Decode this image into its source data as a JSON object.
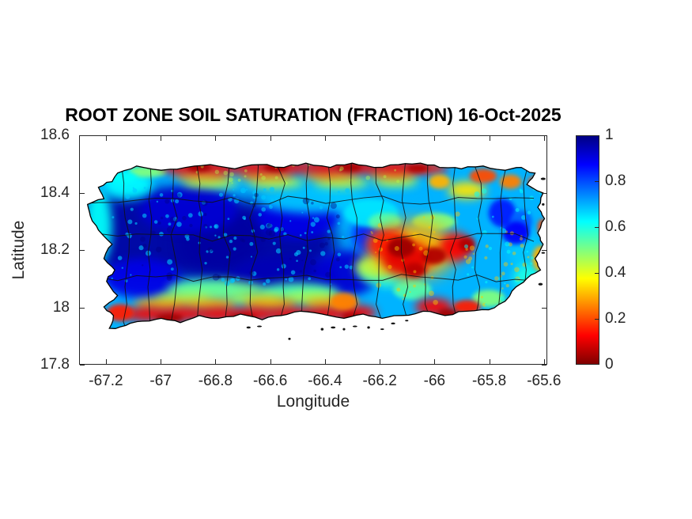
{
  "figure": {
    "background": "#ffffff",
    "axes_color": "#262626",
    "title_color": "#000000"
  },
  "chart_data": {
    "type": "heatmap",
    "title": "ROOT ZONE SOIL SATURATION (FRACTION) 16-Oct-2025",
    "xlabel": "Longitude",
    "ylabel": "Latitude",
    "region": "Puerto Rico",
    "grid": false,
    "xlim": [
      -67.298,
      -65.588
    ],
    "ylim": [
      17.8,
      18.6
    ],
    "xticks": [
      -67.2,
      -67,
      -66.8,
      -66.6,
      -66.4,
      -66.2,
      -66,
      -65.8,
      -65.6
    ],
    "xtick_labels": [
      "-67.2",
      "-67",
      "-66.8",
      "-66.6",
      "-66.4",
      "-66.2",
      "-66",
      "-65.8",
      "-65.6"
    ],
    "yticks": [
      18.6,
      18.4,
      18.2,
      18,
      17.8
    ],
    "ytick_labels": [
      "18.6",
      "18.4",
      "18.2",
      "18",
      "17.8"
    ],
    "colorbar": {
      "min": 0,
      "max": 1,
      "tick_values": [
        1,
        0.8,
        0.6,
        0.4,
        0.2,
        0
      ],
      "tick_labels": [
        "1",
        "0.8",
        "0.6",
        "0.4",
        "0.2",
        "0"
      ],
      "colormap": "jet-reversed",
      "gradient_stops": [
        {
          "color": "#7f0000",
          "value": 0
        },
        {
          "color": "#ff0000",
          "value": 0.125
        },
        {
          "color": "#ffff00",
          "value": 0.375
        },
        {
          "color": "#00ffff",
          "value": 0.625
        },
        {
          "color": "#0000ff",
          "value": 0.875
        },
        {
          "color": "#000084",
          "value": 1
        }
      ]
    },
    "base_value": 0.7,
    "saturation_regions": [
      [
        -67.0,
        18.25,
        0.38,
        0.16,
        0.97,
        "L"
      ],
      [
        -66.65,
        18.22,
        0.3,
        0.15,
        0.97,
        "L"
      ],
      [
        -66.9,
        18.34,
        0.18,
        0.08,
        0.92,
        "M"
      ],
      [
        -66.5,
        18.32,
        0.15,
        0.08,
        0.9,
        "M"
      ],
      [
        -66.55,
        18.1,
        0.2,
        0.08,
        0.95,
        "M"
      ],
      [
        -67.07,
        18.1,
        0.14,
        0.07,
        0.9,
        "M"
      ],
      [
        -66.32,
        18.12,
        0.12,
        0.08,
        0.92,
        "M"
      ],
      [
        -66.2,
        18.25,
        0.1,
        0.08,
        0.85,
        "M"
      ],
      [
        -67.23,
        18.28,
        0.05,
        0.13,
        0.62,
        "M"
      ],
      [
        -67.12,
        18.43,
        0.09,
        0.05,
        0.63,
        "M"
      ],
      [
        -66.45,
        18.38,
        0.2,
        0.05,
        0.68,
        "M"
      ],
      [
        -66.15,
        18.35,
        0.12,
        0.06,
        0.7,
        "M"
      ],
      [
        -66.8,
        18.06,
        0.18,
        0.035,
        0.52,
        "M"
      ],
      [
        -66.5,
        18.05,
        0.15,
        0.035,
        0.55,
        "M"
      ],
      [
        -66.17,
        18.12,
        0.1,
        0.05,
        0.6,
        "M"
      ],
      [
        -66.23,
        18.33,
        0.1,
        0.05,
        0.65,
        "S"
      ],
      [
        -65.67,
        18.2,
        0.06,
        0.07,
        0.68,
        "M"
      ],
      [
        -65.66,
        18.1,
        0.05,
        0.05,
        0.6,
        "M"
      ],
      [
        -66.08,
        18.06,
        0.07,
        0.035,
        0.55,
        "S"
      ],
      [
        -65.8,
        18.03,
        0.06,
        0.03,
        0.5,
        "S"
      ],
      [
        -66.82,
        18.437,
        0.1,
        0.018,
        0.43,
        "M"
      ],
      [
        -66.58,
        18.437,
        0.1,
        0.018,
        0.43,
        "M"
      ],
      [
        -66.34,
        18.437,
        0.1,
        0.018,
        0.43,
        "M"
      ],
      [
        -66.14,
        18.44,
        0.08,
        0.018,
        0.45,
        "M"
      ],
      [
        -66.92,
        18.03,
        0.1,
        0.018,
        0.45,
        "M"
      ],
      [
        -66.65,
        18.03,
        0.1,
        0.018,
        0.45,
        "M"
      ],
      [
        -66.45,
        18.035,
        0.1,
        0.018,
        0.45,
        "M"
      ],
      [
        -66.22,
        18.14,
        0.07,
        0.04,
        0.45,
        "M"
      ],
      [
        -66.0,
        18.3,
        0.08,
        0.03,
        0.5,
        "S"
      ],
      [
        -66.18,
        18.3,
        0.06,
        0.03,
        0.55,
        "S"
      ],
      [
        -67.05,
        18.475,
        0.07,
        0.02,
        0.5,
        "S"
      ],
      [
        -67.14,
        18.455,
        0.05,
        0.02,
        0.62,
        "S"
      ],
      [
        -66.85,
        18.462,
        0.1,
        0.018,
        0.28,
        "M"
      ],
      [
        -66.62,
        18.462,
        0.1,
        0.018,
        0.28,
        "M"
      ],
      [
        -66.38,
        18.462,
        0.1,
        0.018,
        0.28,
        "M"
      ],
      [
        -66.15,
        18.465,
        0.09,
        0.018,
        0.28,
        "M"
      ],
      [
        -67.0,
        18.01,
        0.1,
        0.02,
        0.3,
        "M"
      ],
      [
        -66.82,
        18.01,
        0.1,
        0.02,
        0.3,
        "M"
      ],
      [
        -66.6,
        18.012,
        0.1,
        0.02,
        0.3,
        "M"
      ],
      [
        -66.38,
        18.012,
        0.1,
        0.02,
        0.3,
        "M"
      ],
      [
        -66.08,
        18.2,
        0.16,
        0.1,
        0.3,
        "L"
      ],
      [
        -65.88,
        18.41,
        0.07,
        0.03,
        0.35,
        "M"
      ],
      [
        -65.61,
        18.17,
        0.03,
        0.045,
        0.3,
        "S"
      ],
      [
        -66.92,
        18.49,
        0.08,
        0.022,
        0.12,
        "M"
      ],
      [
        -66.79,
        18.49,
        0.08,
        0.022,
        0.12,
        "M"
      ],
      [
        -66.66,
        18.49,
        0.08,
        0.022,
        0.12,
        "M"
      ],
      [
        -66.53,
        18.49,
        0.08,
        0.022,
        0.12,
        "M"
      ],
      [
        -66.4,
        18.49,
        0.08,
        0.022,
        0.12,
        "M"
      ],
      [
        -66.27,
        18.49,
        0.08,
        0.022,
        0.12,
        "M"
      ],
      [
        -66.14,
        18.49,
        0.08,
        0.022,
        0.12,
        "M"
      ],
      [
        -66.02,
        18.487,
        0.07,
        0.02,
        0.14,
        "M"
      ],
      [
        -67.05,
        17.975,
        0.08,
        0.025,
        0.12,
        "M"
      ],
      [
        -66.92,
        17.975,
        0.08,
        0.025,
        0.12,
        "M"
      ],
      [
        -66.79,
        17.975,
        0.08,
        0.025,
        0.12,
        "M"
      ],
      [
        -66.66,
        17.975,
        0.08,
        0.025,
        0.12,
        "M"
      ],
      [
        -66.53,
        17.975,
        0.08,
        0.025,
        0.12,
        "M"
      ],
      [
        -66.4,
        17.975,
        0.08,
        0.025,
        0.12,
        "M"
      ],
      [
        -66.28,
        17.98,
        0.07,
        0.025,
        0.12,
        "M"
      ],
      [
        -67.15,
        17.98,
        0.05,
        0.03,
        0.15,
        "S"
      ],
      [
        -66.33,
        18.02,
        0.05,
        0.03,
        0.25,
        "S"
      ],
      [
        -66.0,
        18.0,
        0.07,
        0.03,
        0.12,
        "M"
      ],
      [
        -65.88,
        18.0,
        0.05,
        0.025,
        0.15,
        "S"
      ],
      [
        -66.17,
        18.22,
        0.07,
        0.05,
        0.15,
        "M"
      ],
      [
        -66.1,
        18.17,
        0.09,
        0.06,
        0.1,
        "M"
      ],
      [
        -65.92,
        18.21,
        0.06,
        0.05,
        0.12,
        "M"
      ],
      [
        -65.82,
        18.46,
        0.05,
        0.025,
        0.2,
        "S"
      ],
      [
        -65.72,
        18.44,
        0.04,
        0.025,
        0.25,
        "S"
      ],
      [
        -65.63,
        18.44,
        0.025,
        0.02,
        0.2,
        "S"
      ],
      [
        -65.98,
        18.44,
        0.04,
        0.025,
        0.3,
        "S"
      ],
      [
        -65.6,
        18.28,
        0.02,
        0.03,
        0.2,
        "S"
      ],
      [
        -66.86,
        18.49,
        0.045,
        0.015,
        0.04,
        "S"
      ],
      [
        -66.58,
        18.49,
        0.045,
        0.015,
        0.04,
        "S"
      ],
      [
        -66.31,
        18.49,
        0.045,
        0.015,
        0.04,
        "S"
      ],
      [
        -66.06,
        18.487,
        0.04,
        0.015,
        0.05,
        "S"
      ],
      [
        -66.97,
        17.962,
        0.05,
        0.015,
        0.04,
        "S"
      ],
      [
        -66.7,
        17.962,
        0.05,
        0.015,
        0.04,
        "S"
      ],
      [
        -66.45,
        17.96,
        0.05,
        0.015,
        0.04,
        "S"
      ],
      [
        -66.3,
        17.965,
        0.04,
        0.015,
        0.05,
        "S"
      ],
      [
        -66.12,
        18.21,
        0.05,
        0.035,
        0.03,
        "S"
      ],
      [
        -66.0,
        18.18,
        0.045,
        0.03,
        0.05,
        "S"
      ],
      [
        -66.07,
        18.13,
        0.04,
        0.025,
        0.06,
        "S"
      ],
      [
        -65.88,
        18.22,
        0.03,
        0.025,
        0.05,
        "S"
      ],
      [
        -65.95,
        17.975,
        0.04,
        0.02,
        0.04,
        "S"
      ],
      [
        -65.75,
        18.33,
        0.05,
        0.05,
        0.85,
        "S"
      ],
      [
        -65.68,
        18.3,
        0.04,
        0.04,
        0.78,
        "S"
      ],
      [
        -65.7,
        18.26,
        0.05,
        0.04,
        0.88,
        "S"
      ]
    ],
    "map": {
      "outline": [
        [
          -67.16,
          18.47
        ],
        [
          -67.09,
          18.495
        ],
        [
          -67.0,
          18.48
        ],
        [
          -66.91,
          18.49
        ],
        [
          -66.82,
          18.5
        ],
        [
          -66.73,
          18.485
        ],
        [
          -66.64,
          18.5
        ],
        [
          -66.55,
          18.49
        ],
        [
          -66.47,
          18.505
        ],
        [
          -66.38,
          18.49
        ],
        [
          -66.3,
          18.505
        ],
        [
          -66.22,
          18.49
        ],
        [
          -66.13,
          18.5
        ],
        [
          -66.05,
          18.505
        ],
        [
          -65.98,
          18.49
        ],
        [
          -65.9,
          18.485
        ],
        [
          -65.82,
          18.495
        ],
        [
          -65.74,
          18.48
        ],
        [
          -65.68,
          18.49
        ],
        [
          -65.63,
          18.47
        ],
        [
          -65.66,
          18.43
        ],
        [
          -65.6,
          18.4
        ],
        [
          -65.62,
          18.35
        ],
        [
          -65.595,
          18.31
        ],
        [
          -65.62,
          18.26
        ],
        [
          -65.6,
          18.22
        ],
        [
          -65.63,
          18.17
        ],
        [
          -65.61,
          18.13
        ],
        [
          -65.66,
          18.1
        ],
        [
          -65.7,
          18.07
        ],
        [
          -65.74,
          18.02
        ],
        [
          -65.8,
          17.99
        ],
        [
          -65.88,
          17.985
        ],
        [
          -65.96,
          17.97
        ],
        [
          -66.04,
          17.985
        ],
        [
          -66.12,
          17.97
        ],
        [
          -66.19,
          17.96
        ],
        [
          -66.26,
          17.975
        ],
        [
          -66.33,
          17.96
        ],
        [
          -66.41,
          17.975
        ],
        [
          -66.49,
          17.985
        ],
        [
          -66.56,
          17.97
        ],
        [
          -66.63,
          17.955
        ],
        [
          -66.71,
          17.975
        ],
        [
          -66.79,
          17.96
        ],
        [
          -66.86,
          17.97
        ],
        [
          -66.93,
          17.945
        ],
        [
          -67.0,
          17.96
        ],
        [
          -67.07,
          17.95
        ],
        [
          -67.13,
          17.935
        ],
        [
          -67.19,
          17.925
        ],
        [
          -67.175,
          17.97
        ],
        [
          -67.21,
          18.0
        ],
        [
          -67.16,
          18.04
        ],
        [
          -67.2,
          18.09
        ],
        [
          -67.17,
          18.13
        ],
        [
          -67.21,
          18.17
        ],
        [
          -67.18,
          18.22
        ],
        [
          -67.23,
          18.27
        ],
        [
          -67.26,
          18.32
        ],
        [
          -67.27,
          18.36
        ],
        [
          -67.21,
          18.38
        ],
        [
          -67.23,
          18.42
        ],
        [
          -67.18,
          18.44
        ]
      ],
      "boundary_lons": [
        -67.13,
        -67.04,
        -66.95,
        -66.86,
        -66.76,
        -66.66,
        -66.56,
        -66.47,
        -66.38,
        -66.29,
        -66.2,
        -66.11,
        -66.02,
        -65.93,
        -65.84,
        -65.75,
        -65.67
      ],
      "boundary_lats": [
        18.375,
        18.245,
        18.1
      ],
      "islets": [
        [
          -66.68,
          17.928
        ],
        [
          -66.64,
          17.932
        ],
        [
          -66.53,
          17.888
        ],
        [
          -66.41,
          17.922
        ],
        [
          -66.37,
          17.928
        ],
        [
          -66.33,
          17.922
        ],
        [
          -66.29,
          17.932
        ],
        [
          -66.24,
          17.928
        ],
        [
          -66.19,
          17.922
        ],
        [
          -66.15,
          17.942
        ],
        [
          -66.1,
          17.952
        ],
        [
          -65.6,
          18.45
        ],
        [
          -65.6,
          18.36
        ],
        [
          -65.6,
          18.19
        ],
        [
          -65.61,
          18.08
        ]
      ]
    }
  }
}
